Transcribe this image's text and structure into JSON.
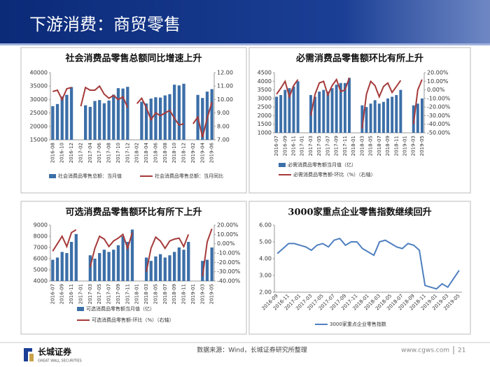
{
  "header": {
    "title": "下游消费：商贸零售"
  },
  "chart_data": [
    {
      "type": "bar_line",
      "title": "社会消费品零售总额同比增速上升",
      "legend": "bottom",
      "categories": [
        "2016-08",
        null,
        "2016-10",
        null,
        "2016-12",
        null,
        "2017-02",
        null,
        "2017-04",
        null,
        "2017-06",
        null,
        "2017-08",
        null,
        "2017-10",
        null,
        "2017-12",
        null,
        "2018-02",
        null,
        "2018-04",
        null,
        "2018-06",
        null,
        "2018-08",
        null,
        "2018-10",
        null,
        "2018-12",
        null,
        "2019-02",
        null,
        "2019-04",
        null,
        "2019-06"
      ],
      "ylim": [
        15000,
        40000
      ],
      "yticks": [
        15000,
        20000,
        25000,
        30000,
        35000,
        40000
      ],
      "y2lim": [
        7,
        12
      ],
      "y2ticks": [
        {
          "value": 7,
          "label": "7.00"
        },
        {
          "value": 8,
          "label": "8.00"
        },
        {
          "value": 9,
          "label": "9.00"
        },
        {
          "value": 10,
          "label": "10.00"
        },
        {
          "value": 11,
          "label": "11.00"
        },
        {
          "value": 12,
          "label": "12.00"
        }
      ],
      "series": [
        {
          "name": "社会消费品零售总额：当月值",
          "kind": "bar",
          "color": "#3c6fa8",
          "values": [
            27539,
            28333,
            31119,
            31757,
            34670,
            null,
            null,
            27864,
            27278,
            29459,
            29808,
            28611,
            29631,
            31837,
            34241,
            34108,
            34734,
            null,
            null,
            29194,
            28542,
            30359,
            30842,
            30734,
            31542,
            32005,
            35534,
            35260,
            35893,
            null,
            null,
            31726,
            30586,
            32956,
            33878
          ]
        },
        {
          "name": "社会消费品零售总额：当月同比",
          "kind": "line",
          "axis": "y2",
          "color": "#a63a3a",
          "values": [
            10.6,
            10.7,
            10.0,
            10.8,
            10.9,
            null,
            9.5,
            10.9,
            10.7,
            10.7,
            11.0,
            10.4,
            10.1,
            10.3,
            10.0,
            10.2,
            9.4,
            null,
            9.7,
            10.1,
            9.4,
            8.5,
            9.0,
            8.8,
            9.0,
            9.2,
            8.6,
            8.1,
            8.2,
            null,
            8.2,
            8.7,
            7.2,
            8.6,
            9.8
          ]
        }
      ]
    },
    {
      "type": "bar_line",
      "title": "必需消费品零售额环比有所上升",
      "legend": "bottom",
      "categories": [
        "2016-07",
        null,
        "2016-09",
        null,
        "2016-11",
        null,
        "2017-01",
        null,
        "2017-03",
        null,
        "2017-05",
        null,
        "2017-07",
        null,
        "2017-09",
        null,
        "2017-11",
        null,
        "2018-01",
        null,
        "2018-03",
        null,
        "2018-05",
        null,
        "2018-07",
        null,
        "2018-09",
        null,
        "2018-11",
        null,
        "2019-01",
        null,
        "2019-03",
        null,
        "2019-05"
      ],
      "ylim": [
        1000,
        4500
      ],
      "yticks": [
        1000,
        1500,
        2000,
        2500,
        3000,
        3500,
        4000,
        4500
      ],
      "y2lim": [
        -50,
        20
      ],
      "y2ticks": [
        {
          "value": -50,
          "label": "-50.00%"
        },
        {
          "value": -40,
          "label": "-40.00%"
        },
        {
          "value": -30,
          "label": "-30.00%"
        },
        {
          "value": -20,
          "label": "-20.00%"
        },
        {
          "value": -10,
          "label": "-10.00%"
        },
        {
          "value": 0,
          "label": "0.00%"
        },
        {
          "value": 10,
          "label": "10.00%"
        },
        {
          "value": 20,
          "label": "20.00%"
        }
      ],
      "series": [
        {
          "name": "必需消费品零售额当月值（亿）",
          "kind": "bar",
          "color": "#3c6fa8",
          "values": [
            3100,
            3200,
            3500,
            3600,
            3700,
            4000,
            null,
            null,
            3200,
            3100,
            3400,
            3500,
            3400,
            3600,
            3800,
            3900,
            3900,
            4200,
            null,
            null,
            2600,
            2500,
            2700,
            2900,
            2700,
            2800,
            3000,
            3100,
            3200,
            3500,
            null,
            null,
            2600,
            2700,
            3000
          ]
        },
        {
          "name": "必需消费品零售额-环比（%）（右轴）",
          "kind": "line",
          "axis": "y2",
          "color": "#a63a3a",
          "values": [
            -5,
            2,
            10,
            -8,
            5,
            12,
            null,
            null,
            -30,
            -5,
            8,
            10,
            -6,
            5,
            12,
            -2,
            0,
            14,
            null,
            null,
            -45,
            -5,
            10,
            5,
            -8,
            4,
            8,
            -3,
            4,
            11,
            null,
            null,
            -40,
            0,
            12
          ]
        }
      ]
    },
    {
      "type": "bar_line",
      "title": "可选消费品零售额环比有所下上升",
      "legend": "bottom",
      "categories": [
        "2016-07",
        null,
        "2016-09",
        null,
        "2016-11",
        null,
        "2017-01",
        null,
        "2017-03",
        null,
        "2017-05",
        null,
        "2017-07",
        null,
        "2017-09",
        null,
        "2017-11",
        null,
        "2018-01",
        null,
        "2018-03",
        null,
        "2018-05",
        null,
        "2018-07",
        null,
        "2018-09",
        null,
        "2018-11",
        null,
        "2019-01",
        null,
        "2019-03",
        null,
        "2019-05"
      ],
      "ylim": [
        4000,
        9000
      ],
      "yticks": [
        4000,
        5000,
        6000,
        7000,
        8000,
        9000
      ],
      "y2lim": [
        -40,
        20
      ],
      "y2ticks": [
        {
          "value": -40,
          "label": "-40.00%"
        },
        {
          "value": -30,
          "label": "-30.00%"
        },
        {
          "value": -20,
          "label": "-20.00%"
        },
        {
          "value": -10,
          "label": "-10.00%"
        },
        {
          "value": 0,
          "label": "0.00%"
        },
        {
          "value": 10,
          "label": "10.00%"
        },
        {
          "value": 20,
          "label": "20.00%"
        }
      ],
      "series": [
        {
          "name": "可选消费品零售额当月值（亿）",
          "kind": "bar",
          "color": "#3c6fa8",
          "values": [
            5900,
            6100,
            6600,
            6500,
            7500,
            8200,
            null,
            null,
            6300,
            6000,
            6500,
            6800,
            6600,
            6800,
            7200,
            8000,
            7500,
            8600,
            null,
            null,
            6100,
            5800,
            6200,
            6400,
            6100,
            6300,
            6600,
            7000,
            6800,
            7500,
            null,
            null,
            5800,
            5900,
            7000
          ]
        },
        {
          "name": "可选消费品零售额-环比（%）（右轴）",
          "kind": "line",
          "axis": "y2",
          "color": "#a63a3a",
          "values": [
            -8,
            0,
            8,
            -3,
            12,
            15,
            null,
            null,
            -25,
            -5,
            8,
            5,
            -3,
            3,
            6,
            10,
            -5,
            12,
            null,
            null,
            -30,
            -5,
            7,
            3,
            -5,
            3,
            5,
            6,
            -3,
            10,
            null,
            null,
            -35,
            2,
            16
          ]
        }
      ]
    },
    {
      "type": "line",
      "title": "3000家重点企业零售指数继续回升",
      "legend": "bottom",
      "categories": [
        "2016-09",
        null,
        "2016-11",
        null,
        "2017-01",
        null,
        "2017-03",
        null,
        "2017-05",
        null,
        "2017-07",
        null,
        "2017-09",
        null,
        "2017-11",
        null,
        "2018-01",
        null,
        "2018-03",
        null,
        "2018-05",
        null,
        "2018-07",
        null,
        "2018-09",
        null,
        "2018-11",
        null,
        "2019-01",
        null,
        "2019-03",
        null,
        "2019-05"
      ],
      "ylim": [
        2,
        6
      ],
      "yticks": [
        {
          "value": 2,
          "label": "2.00"
        },
        {
          "value": 3,
          "label": "3.00"
        },
        {
          "value": 4,
          "label": "4.00"
        },
        {
          "value": 5,
          "label": "5.00"
        },
        {
          "value": 6,
          "label": "6.00"
        }
      ],
      "series": [
        {
          "name": "3000家重点企业零售指数",
          "kind": "line",
          "color": "#4f7fc0",
          "values": [
            4.3,
            4.6,
            4.9,
            4.9,
            4.8,
            4.7,
            4.5,
            4.8,
            4.9,
            4.7,
            5.1,
            5.2,
            4.8,
            5.0,
            5.0,
            4.6,
            4.4,
            4.2,
            5.0,
            5.1,
            4.9,
            4.7,
            4.6,
            4.9,
            4.8,
            4.5,
            2.4,
            2.3,
            2.2,
            2.5,
            2.3,
            2.8,
            3.3
          ]
        }
      ]
    }
  ],
  "footer": {
    "logo": "长城证券",
    "logo_en": "GREAT WALL SECURITIES",
    "source": "数据来源：Wind，长城证券研究所整理",
    "site": "www.cgws.com",
    "page": "21"
  }
}
